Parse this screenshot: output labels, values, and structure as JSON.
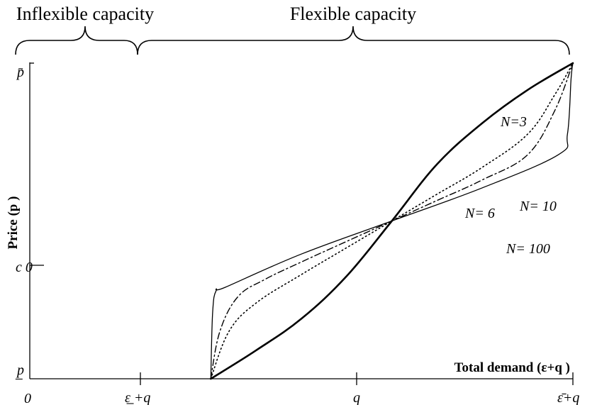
{
  "chart_data": {
    "type": "line",
    "title": "",
    "xlabel": "Total demand (ε+q )",
    "ylabel": "Price (p )",
    "x_ticks": [
      "0",
      "ε̲ +q",
      "q",
      "ε̄+q"
    ],
    "y_ticks": [
      "p̲",
      "c 0",
      "p̄"
    ],
    "x_tick_values": [
      0,
      1,
      2,
      3
    ],
    "y_tick_values": [
      0,
      1,
      2
    ],
    "xlim": [
      0,
      3
    ],
    "ylim": [
      0,
      2
    ],
    "annotations": [
      {
        "label": "Inflexible capacity",
        "x_range": [
          0,
          1
        ]
      },
      {
        "label": "Flexible capacity",
        "x_range": [
          1,
          3
        ]
      }
    ],
    "series": [
      {
        "name": "N=3",
        "style": "solid-thick",
        "x": [
          1.0,
          1.25,
          1.5,
          1.75,
          2.0,
          2.25,
          2.5,
          2.75,
          3.0
        ],
        "y": [
          0.0,
          0.18,
          0.38,
          0.65,
          1.0,
          1.36,
          1.62,
          1.83,
          2.0
        ]
      },
      {
        "name": "N= 6",
        "style": "dotted",
        "x": [
          1.0,
          1.1,
          1.25,
          1.5,
          1.75,
          2.0,
          2.25,
          2.5,
          2.75,
          2.9,
          3.0
        ],
        "y": [
          0.0,
          0.3,
          0.48,
          0.66,
          0.83,
          1.0,
          1.17,
          1.34,
          1.55,
          1.8,
          2.0
        ]
      },
      {
        "name": "N= 10",
        "style": "dash-dot",
        "x": [
          1.0,
          1.05,
          1.15,
          1.3,
          1.5,
          1.75,
          2.0,
          2.25,
          2.5,
          2.75,
          2.9,
          3.0
        ],
        "y": [
          0.0,
          0.3,
          0.52,
          0.63,
          0.74,
          0.87,
          1.0,
          1.13,
          1.26,
          1.42,
          1.7,
          2.0
        ]
      },
      {
        "name": "N= 100",
        "style": "solid-thin",
        "x": [
          1.0,
          1.01,
          1.03,
          1.08,
          1.5,
          2.0,
          2.5,
          2.92,
          2.97,
          2.99,
          3.0
        ],
        "y": [
          0.0,
          0.42,
          0.56,
          0.58,
          0.79,
          1.0,
          1.21,
          1.42,
          1.55,
          1.9,
          2.0
        ]
      }
    ]
  }
}
